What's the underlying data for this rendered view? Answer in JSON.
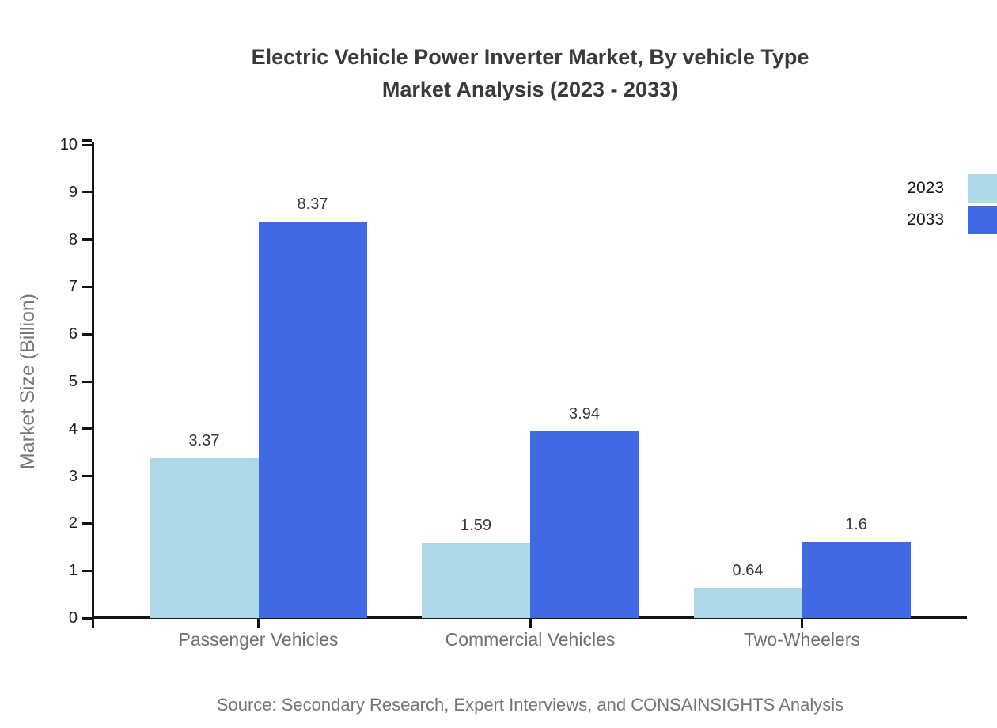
{
  "title": {
    "line1": "Electric Vehicle Power Inverter Market, By vehicle Type",
    "line2": "Market Analysis (2023 - 2033)"
  },
  "source": "Source: Secondary Research, Expert Interviews, and CONSAINSIGHTS Analysis",
  "legend": {
    "items": [
      {
        "label": "2023",
        "color": "#ADD8E6"
      },
      {
        "label": "2033",
        "color": "#4169E1"
      }
    ]
  },
  "colors": {
    "series_2023": "#ADD8E6",
    "series_2033": "#4169E1",
    "axis": "#141414",
    "title_text": "#3a3a3a",
    "category_text": "#6e6e6e",
    "axis_title_text": "#787878",
    "source_text": "#757575"
  },
  "chart_data": {
    "type": "bar",
    "title": "Electric Vehicle Power Inverter Market, By vehicle Type Market Analysis (2023 - 2033)",
    "categories": [
      "Passenger Vehicles",
      "Commercial Vehicles",
      "Two-Wheelers"
    ],
    "series": [
      {
        "name": "2023",
        "color": "#ADD8E6",
        "values": [
          3.37,
          1.59,
          0.64
        ]
      },
      {
        "name": "2033",
        "color": "#4169E1",
        "values": [
          8.37,
          3.94,
          1.6
        ]
      }
    ],
    "value_labels": [
      [
        "3.37",
        "1.59",
        "0.64"
      ],
      [
        "8.37",
        "3.94",
        "1.6"
      ]
    ],
    "xlabel": "",
    "ylabel": "Market Size (Billion)",
    "ylim": [
      0,
      10
    ],
    "yticks": [
      0,
      1,
      2,
      3,
      4,
      5,
      6,
      7,
      8,
      9,
      10
    ],
    "grid": false,
    "legend_position": "upper right",
    "value_labels_shown": true
  }
}
